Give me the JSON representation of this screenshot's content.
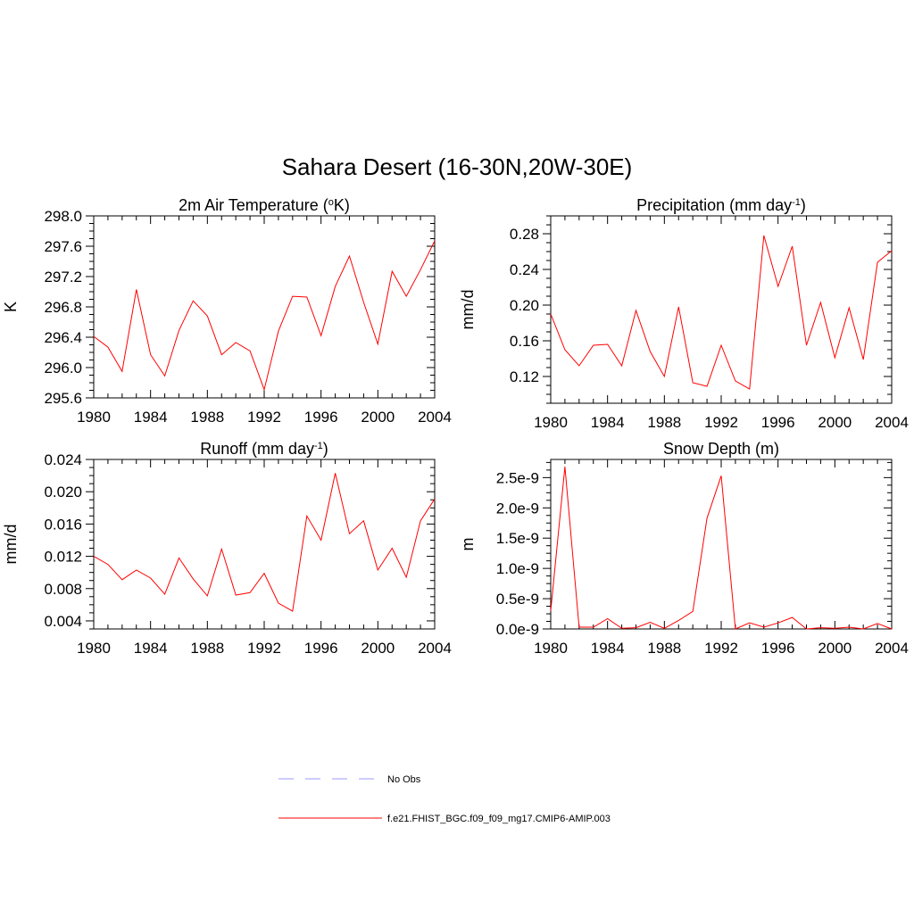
{
  "title": "Sahara Desert (16-30N,20W-30E)",
  "legend": [
    {
      "label": "No Obs",
      "color": "#9999ff",
      "dashed": true
    },
    {
      "label": "f.e21.FHIST_BGC.f09_f09_mg17.CMIP6-AMIP.003",
      "color": "#ff0000",
      "dashed": false
    }
  ],
  "chart_data": [
    {
      "type": "line",
      "title": {
        "text": "2m Air Temperature (",
        "sup": "o",
        "after": "K)"
      },
      "ylabel": "K",
      "xlim": [
        1980,
        2004
      ],
      "ylim": [
        295.6,
        298.0
      ],
      "xticks": [
        1980,
        1984,
        1988,
        1992,
        1996,
        2000,
        2004
      ],
      "xtick_labels": [
        "1980",
        "1984",
        "1988",
        "1992",
        "1996",
        "2000",
        "2004"
      ],
      "yticks": [
        295.6,
        296.0,
        296.4,
        296.8,
        297.2,
        297.6,
        298.0
      ],
      "ytick_labels": [
        "295.6",
        "296.0",
        "296.4",
        "296.8",
        "297.2",
        "297.6",
        "298.0"
      ],
      "x": [
        1980,
        1981,
        1982,
        1983,
        1984,
        1985,
        1986,
        1987,
        1988,
        1989,
        1990,
        1991,
        1992,
        1993,
        1994,
        1995,
        1996,
        1997,
        1998,
        1999,
        2000,
        2001,
        2002,
        2003,
        2004
      ],
      "series": [
        {
          "color": "#ff0000",
          "values": [
            296.41,
            296.27,
            295.95,
            297.03,
            296.17,
            295.89,
            296.49,
            296.88,
            296.68,
            296.17,
            296.33,
            296.22,
            295.71,
            296.48,
            296.94,
            296.93,
            296.42,
            297.07,
            297.47,
            296.86,
            296.31,
            297.27,
            296.94,
            297.29,
            297.67
          ]
        }
      ]
    },
    {
      "type": "line",
      "title": {
        "text": "Precipitation (mm day",
        "sup": "-1",
        "after": ")"
      },
      "ylabel": "mm/d",
      "xlim": [
        1980,
        2004
      ],
      "ylim": [
        0.09,
        0.3
      ],
      "xticks": [
        1980,
        1984,
        1988,
        1992,
        1996,
        2000,
        2004
      ],
      "xtick_labels": [
        "1980",
        "1984",
        "1988",
        "1992",
        "1996",
        "2000",
        "2004"
      ],
      "yticks": [
        0.12,
        0.16,
        0.2,
        0.24,
        0.28
      ],
      "ytick_labels": [
        "0.12",
        "0.16",
        "0.20",
        "0.24",
        "0.28"
      ],
      "x": [
        1980,
        1981,
        1982,
        1983,
        1984,
        1985,
        1986,
        1987,
        1988,
        1989,
        1990,
        1991,
        1992,
        1993,
        1994,
        1995,
        1996,
        1997,
        1998,
        1999,
        2000,
        2001,
        2002,
        2003,
        2004
      ],
      "series": [
        {
          "color": "#ff0000",
          "values": [
            0.19,
            0.15,
            0.132,
            0.155,
            0.156,
            0.132,
            0.194,
            0.148,
            0.12,
            0.198,
            0.113,
            0.109,
            0.155,
            0.115,
            0.106,
            0.278,
            0.221,
            0.266,
            0.155,
            0.203,
            0.141,
            0.197,
            0.139,
            0.248,
            0.261
          ]
        }
      ]
    },
    {
      "type": "line",
      "title": {
        "text": "Runoff (mm day",
        "sup": "-1",
        "after": ")"
      },
      "ylabel": "mm/d",
      "xlim": [
        1980,
        2004
      ],
      "ylim": [
        0.003,
        0.024
      ],
      "xticks": [
        1980,
        1984,
        1988,
        1992,
        1996,
        2000,
        2004
      ],
      "xtick_labels": [
        "1980",
        "1984",
        "1988",
        "1992",
        "1996",
        "2000",
        "2004"
      ],
      "yticks": [
        0.004,
        0.008,
        0.012,
        0.016,
        0.02,
        0.024
      ],
      "ytick_labels": [
        "0.004",
        "0.008",
        "0.012",
        "0.016",
        "0.020",
        "0.024"
      ],
      "x": [
        1980,
        1981,
        1982,
        1983,
        1984,
        1985,
        1986,
        1987,
        1988,
        1989,
        1990,
        1991,
        1992,
        1993,
        1994,
        1995,
        1996,
        1997,
        1998,
        1999,
        2000,
        2001,
        2002,
        2003,
        2004
      ],
      "series": [
        {
          "color": "#ff0000",
          "values": [
            0.012,
            0.011,
            0.0091,
            0.0103,
            0.0093,
            0.0073,
            0.0118,
            0.0092,
            0.0071,
            0.0129,
            0.0072,
            0.0075,
            0.0099,
            0.0062,
            0.0052,
            0.017,
            0.014,
            0.0223,
            0.0148,
            0.0164,
            0.0103,
            0.013,
            0.0094,
            0.0164,
            0.0191
          ]
        }
      ]
    },
    {
      "type": "line",
      "title": {
        "text": "Snow Depth (m)",
        "sup": "",
        "after": ""
      },
      "ylabel": "m",
      "xlim": [
        1980,
        2004
      ],
      "ylim": [
        0,
        2.8e-09
      ],
      "xticks": [
        1980,
        1984,
        1988,
        1992,
        1996,
        2000,
        2004
      ],
      "xtick_labels": [
        "1980",
        "1984",
        "1988",
        "1992",
        "1996",
        "2000",
        "2004"
      ],
      "yticks": [
        0,
        5e-10,
        1e-09,
        1.5e-09,
        2e-09,
        2.5e-09
      ],
      "ytick_labels": [
        "0.0e-9",
        "0.5e-9",
        "1.0e-9",
        "1.5e-9",
        "2.0e-9",
        "2.5e-9"
      ],
      "x": [
        1980,
        1981,
        1982,
        1983,
        1984,
        1985,
        1986,
        1987,
        1988,
        1989,
        1990,
        1991,
        1992,
        1993,
        1994,
        1995,
        1996,
        1997,
        1998,
        1999,
        2000,
        2001,
        2002,
        2003,
        2004
      ],
      "series": [
        {
          "color": "#ff0000",
          "values": [
            3e-10,
            2.68e-09,
            3e-11,
            3e-11,
            1.7e-10,
            1e-11,
            2e-11,
            1.1e-10,
            1e-11,
            1.4e-10,
            2.9e-10,
            1.83e-09,
            2.53e-09,
            0.0,
            1e-10,
            3e-11,
            1e-10,
            1.9e-10,
            0.0,
            2e-11,
            1e-11,
            3e-11,
            0.0,
            9e-11,
            0.0
          ]
        }
      ]
    }
  ]
}
